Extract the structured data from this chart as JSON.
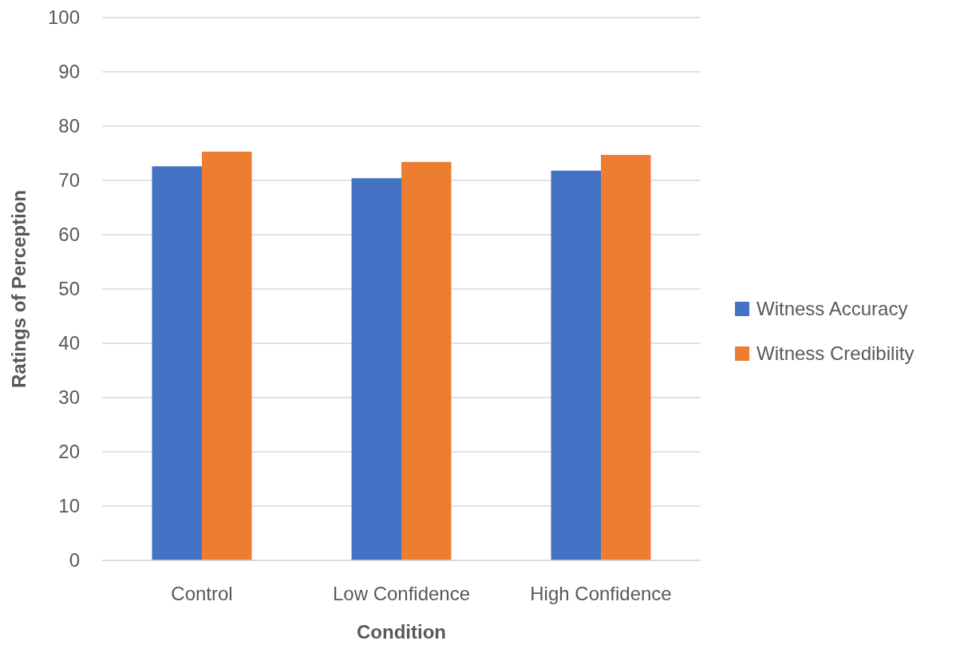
{
  "chart_data": {
    "type": "bar",
    "xlabel": "Condition",
    "ylabel": "Ratings of Perception",
    "categories": [
      "Control",
      "Low Confidence",
      "High Confidence"
    ],
    "series": [
      {
        "name": "Witness Accuracy",
        "color": "#4472c4",
        "values": [
          72.6,
          70.4,
          71.8
        ]
      },
      {
        "name": "Witness Credibility",
        "color": "#ed7d31",
        "values": [
          75.3,
          73.4,
          74.7
        ]
      }
    ],
    "ylim": [
      0,
      100
    ],
    "yticks": [
      0,
      10,
      20,
      30,
      40,
      50,
      60,
      70,
      80,
      90,
      100
    ],
    "grid": "y",
    "legend": "right"
  }
}
